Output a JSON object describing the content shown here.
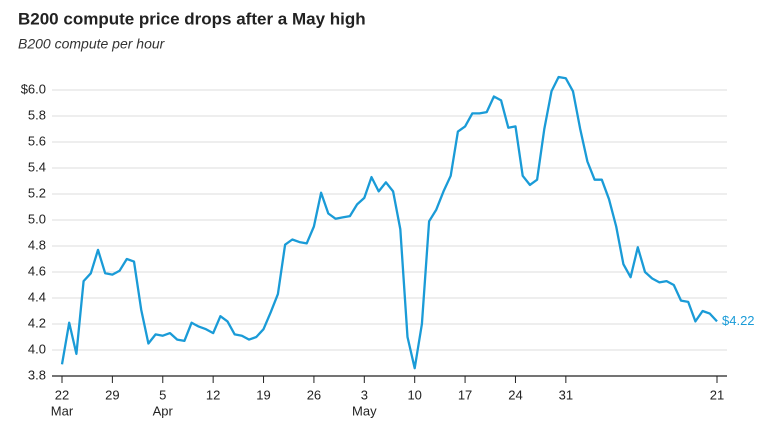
{
  "chart_data": {
    "type": "line",
    "title": "B200 compute price drops after a May high",
    "subtitle": "B200 compute per hour",
    "categories": [
      "Mar 22",
      "Mar 23",
      "Mar 24",
      "Mar 25",
      "Mar 26",
      "Mar 27",
      "Mar 28",
      "Mar 29",
      "Mar 30",
      "Mar 31",
      "Apr 1",
      "Apr 2",
      "Apr 3",
      "Apr 4",
      "Apr 5",
      "Apr 6",
      "Apr 7",
      "Apr 8",
      "Apr 9",
      "Apr 10",
      "Apr 11",
      "Apr 12",
      "Apr 13",
      "Apr 14",
      "Apr 15",
      "Apr 16",
      "Apr 17",
      "Apr 18",
      "Apr 19",
      "Apr 20",
      "Apr 21",
      "Apr 22",
      "Apr 23",
      "Apr 24",
      "Apr 25",
      "Apr 26",
      "Apr 27",
      "Apr 28",
      "Apr 29",
      "Apr 30",
      "May 1",
      "May 2",
      "May 3",
      "May 4",
      "May 5",
      "May 6",
      "May 7",
      "May 8",
      "May 9",
      "May 10",
      "May 11",
      "May 12",
      "May 13",
      "May 14",
      "May 15",
      "May 16",
      "May 17",
      "May 18",
      "May 19",
      "May 20",
      "May 21",
      "May 22",
      "May 23",
      "May 24",
      "May 25",
      "May 26",
      "May 27",
      "May 28",
      "May 29",
      "May 30",
      "May 31",
      "Jun 1",
      "Jun 2",
      "Jun 3",
      "Jun 4",
      "Jun 5",
      "Jun 6",
      "Jun 7",
      "Jun 8",
      "Jun 9",
      "Jun 10",
      "Jun 11",
      "Jun 12",
      "Jun 13",
      "Jun 14",
      "Jun 15",
      "Jun 16",
      "Jun 17",
      "Jun 18",
      "Jun 19",
      "Jun 20",
      "Jun 21"
    ],
    "series": [
      {
        "name": "B200",
        "color": "#1a9bd7",
        "values": [
          3.89,
          4.21,
          3.97,
          4.53,
          4.59,
          4.77,
          4.59,
          4.58,
          4.61,
          4.7,
          4.68,
          4.31,
          4.05,
          4.12,
          4.11,
          4.13,
          4.08,
          4.07,
          4.21,
          4.18,
          4.16,
          4.13,
          4.26,
          4.22,
          4.12,
          4.11,
          4.08,
          4.1,
          4.16,
          4.29,
          4.43,
          4.81,
          4.85,
          4.83,
          4.82,
          4.95,
          5.21,
          5.05,
          5.01,
          5.02,
          5.03,
          5.12,
          5.17,
          5.33,
          5.22,
          5.29,
          5.22,
          4.93,
          4.1,
          3.86,
          4.2,
          4.99,
          5.08,
          5.22,
          5.34,
          5.68,
          5.72,
          5.82,
          5.82,
          5.83,
          5.95,
          5.92,
          5.71,
          5.72,
          5.34,
          5.27,
          5.31,
          5.7,
          5.99,
          6.1,
          6.09,
          5.99,
          5.7,
          5.45,
          5.31,
          5.31,
          5.16,
          4.95,
          4.66,
          4.56,
          4.79,
          4.6,
          4.55,
          4.52,
          4.53,
          4.5,
          4.38,
          4.37,
          4.22,
          4.3,
          4.28,
          4.22
        ]
      }
    ],
    "end_label": "$4.22",
    "ylim": [
      3.8,
      6.1
    ],
    "yticks": [
      3.8,
      {
        "value": 4.0,
        "label": "4.0"
      },
      4.2,
      4.4,
      4.6,
      4.8,
      {
        "value": 5.0,
        "label": "5.0"
      },
      5.2,
      5.4,
      5.6,
      5.8,
      {
        "value": 6.0,
        "label": "$6.0"
      }
    ],
    "xticks": [
      {
        "value": "Mar 22",
        "label": "22",
        "month": "Mar"
      },
      {
        "value": "Mar 29",
        "label": "29"
      },
      {
        "value": "Apr 5",
        "label": "5",
        "month": "Apr"
      },
      {
        "value": "Apr 12",
        "label": "12"
      },
      {
        "value": "Apr 19",
        "label": "19"
      },
      {
        "value": "Apr 26",
        "label": "26"
      },
      {
        "value": "May 3",
        "label": "3",
        "month": "May"
      },
      {
        "value": "May 10",
        "label": "10"
      },
      {
        "value": "May 17",
        "label": "17"
      },
      {
        "value": "May 24",
        "label": "24"
      },
      {
        "value": "May 31",
        "label": "31"
      },
      {
        "value": "Jun 21",
        "label": "21"
      }
    ],
    "grid": true
  }
}
